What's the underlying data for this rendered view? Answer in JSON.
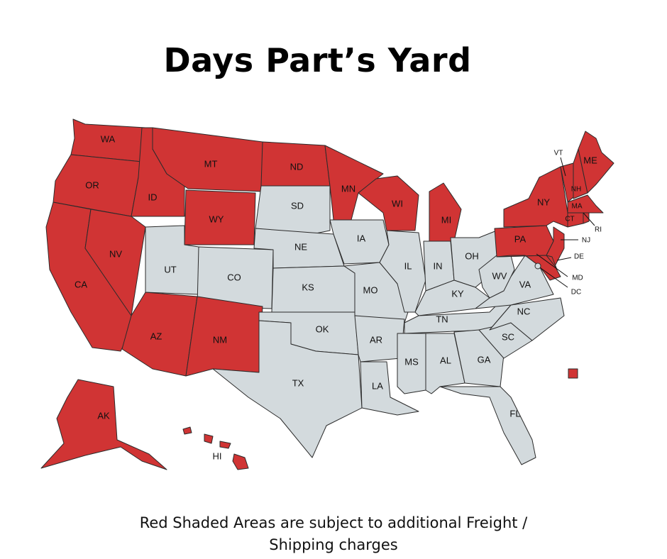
{
  "title": "Days Part’s Yard",
  "caption_line1": "Red Shaded Areas are subject to additional Freight /",
  "caption_line2": "Shipping charges",
  "colors": {
    "shaded": "#d03434",
    "unshaded": "#d3dadd",
    "border": "#2b2b2b"
  },
  "states": {
    "WA": {
      "label": "WA",
      "shaded": true
    },
    "OR": {
      "label": "OR",
      "shaded": true
    },
    "CA": {
      "label": "CA",
      "shaded": true
    },
    "NV": {
      "label": "NV",
      "shaded": true
    },
    "ID": {
      "label": "ID",
      "shaded": true
    },
    "MT": {
      "label": "MT",
      "shaded": true
    },
    "WY": {
      "label": "WY",
      "shaded": true
    },
    "UT": {
      "label": "UT",
      "shaded": false
    },
    "CO": {
      "label": "CO",
      "shaded": false
    },
    "AZ": {
      "label": "AZ",
      "shaded": true
    },
    "NM": {
      "label": "NM",
      "shaded": true
    },
    "ND": {
      "label": "ND",
      "shaded": true
    },
    "SD": {
      "label": "SD",
      "shaded": false
    },
    "NE": {
      "label": "NE",
      "shaded": false
    },
    "KS": {
      "label": "KS",
      "shaded": false
    },
    "OK": {
      "label": "OK",
      "shaded": false
    },
    "TX": {
      "label": "TX",
      "shaded": false
    },
    "MN": {
      "label": "MN",
      "shaded": true
    },
    "IA": {
      "label": "IA",
      "shaded": false
    },
    "MO": {
      "label": "MO",
      "shaded": false
    },
    "AR": {
      "label": "AR",
      "shaded": false
    },
    "LA": {
      "label": "LA",
      "shaded": false
    },
    "WI": {
      "label": "WI",
      "shaded": true
    },
    "IL": {
      "label": "IL",
      "shaded": false
    },
    "MI": {
      "label": "MI",
      "shaded": true
    },
    "IN": {
      "label": "IN",
      "shaded": false
    },
    "OH": {
      "label": "OH",
      "shaded": false
    },
    "KY": {
      "label": "KY",
      "shaded": false
    },
    "TN": {
      "label": "TN",
      "shaded": false
    },
    "MS": {
      "label": "MS",
      "shaded": false
    },
    "AL": {
      "label": "AL",
      "shaded": false
    },
    "GA": {
      "label": "GA",
      "shaded": false
    },
    "FL": {
      "label": "FL",
      "shaded": false
    },
    "SC": {
      "label": "SC",
      "shaded": false
    },
    "NC": {
      "label": "NC",
      "shaded": false
    },
    "VA": {
      "label": "VA",
      "shaded": false
    },
    "WV": {
      "label": "WV",
      "shaded": false
    },
    "PA": {
      "label": "PA",
      "shaded": true
    },
    "NY": {
      "label": "NY",
      "shaded": true
    },
    "NJ": {
      "label": "NJ",
      "shaded": true
    },
    "DE": {
      "label": "DE",
      "shaded": true
    },
    "MD": {
      "label": "MD",
      "shaded": true
    },
    "DC": {
      "label": "DC",
      "shaded": false
    },
    "VT": {
      "label": "VT",
      "shaded": true
    },
    "NH": {
      "label": "NH",
      "shaded": true
    },
    "ME": {
      "label": "ME",
      "shaded": true
    },
    "MA": {
      "label": "MA",
      "shaded": true
    },
    "CT": {
      "label": "CT",
      "shaded": true
    },
    "RI": {
      "label": "RI",
      "shaded": true
    },
    "AK": {
      "label": "AK",
      "shaded": true
    },
    "HI": {
      "label": "HI",
      "shaded": true
    },
    "PR": {
      "label": "",
      "shaded": true
    }
  }
}
